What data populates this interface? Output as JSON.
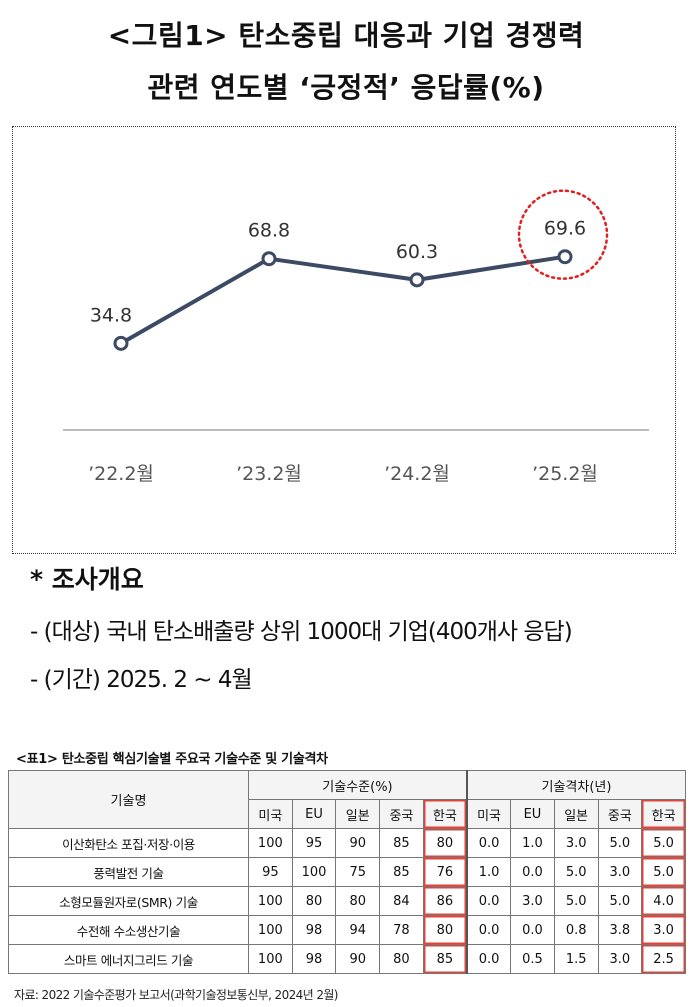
{
  "figure": {
    "title_line1": "<그림1> 탄소중립 대응과 기업 경쟁력",
    "title_line2": "관련 연도별 ‘긍정적’ 응답률(%)"
  },
  "chart_data": {
    "type": "line",
    "categories": [
      "’22.2월",
      "’23.2월",
      "’24.2월",
      "’25.2월"
    ],
    "values": [
      34.8,
      68.8,
      60.3,
      69.6
    ],
    "data_labels": [
      "34.8",
      "68.8",
      "60.3",
      "69.6"
    ],
    "title": "<그림1> 탄소중립 대응과 기업 경쟁력 관련 연도별 ‘긍정적’ 응답률(%)",
    "highlight_index": 3,
    "ylim": [
      0,
      100
    ],
    "grid": false,
    "colors": {
      "line": "#3d4a63",
      "marker_fill": "#ffffff",
      "highlight": "#e02020",
      "baseline": "#bbbbbb"
    }
  },
  "survey": {
    "heading": "* 조사개요",
    "target": "- (대상) 국내 탄소배출량 상위 1000대 기업(400개사 응답)",
    "period": "- (기간) 2025. 2 ~ 4월"
  },
  "table": {
    "caption": "<표1> 탄소중립 핵심기술별 주요국 기술수준 및 기술격차",
    "name_header": "기술명",
    "group1_header": "기술수준(%)",
    "group2_header": "기술격차(년)",
    "countries": [
      "미국",
      "EU",
      "일본",
      "중국",
      "한국"
    ],
    "rows": [
      {
        "name": "이산화탄소 포집·저장·이용",
        "level": [
          "100",
          "95",
          "90",
          "85",
          "80"
        ],
        "gap": [
          "0.0",
          "1.0",
          "3.0",
          "5.0",
          "5.0"
        ]
      },
      {
        "name": "풍력발전 기술",
        "level": [
          "95",
          "100",
          "75",
          "85",
          "76"
        ],
        "gap": [
          "1.0",
          "0.0",
          "5.0",
          "3.0",
          "5.0"
        ]
      },
      {
        "name": "소형모듈원자로(SMR) 기술",
        "level": [
          "100",
          "80",
          "80",
          "84",
          "86"
        ],
        "gap": [
          "0.0",
          "3.0",
          "5.0",
          "5.0",
          "4.0"
        ]
      },
      {
        "name": "수전해 수소생산기술",
        "level": [
          "100",
          "98",
          "94",
          "78",
          "80"
        ],
        "gap": [
          "0.0",
          "0.0",
          "0.8",
          "3.8",
          "3.0"
        ]
      },
      {
        "name": "스마트 에너지그리드 기술",
        "level": [
          "100",
          "98",
          "90",
          "80",
          "85"
        ],
        "gap": [
          "0.0",
          "0.5",
          "1.5",
          "3.0",
          "2.5"
        ]
      }
    ]
  },
  "source": "자료: 2022 기술수준평가 보고서(과학기술정보통신부, 2024년 2월)"
}
